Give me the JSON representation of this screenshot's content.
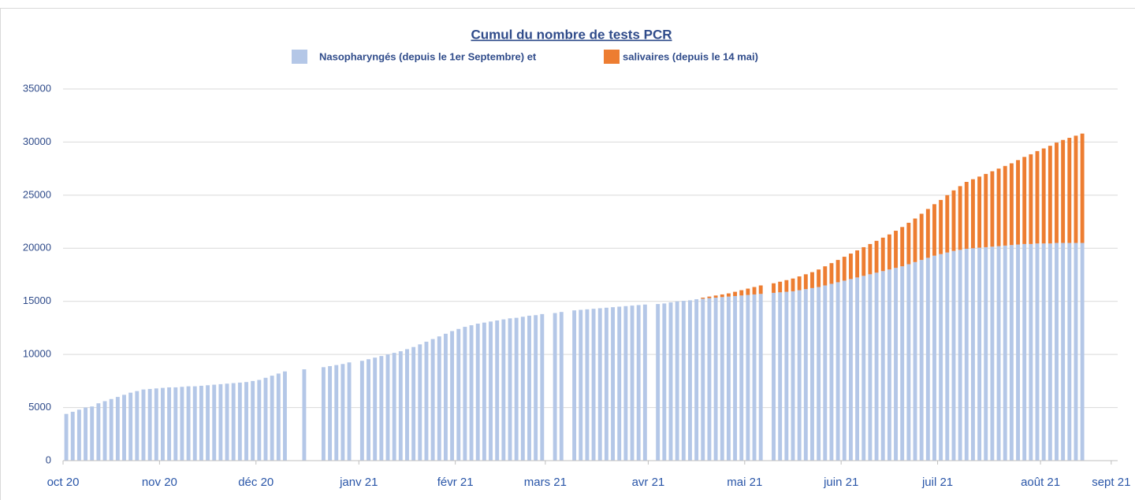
{
  "chart_data": {
    "type": "stacked_bar",
    "title": "Cumul du nombre de tests PCR",
    "categories": [
      "oct 20",
      null,
      null,
      null,
      null,
      null,
      null,
      null,
      null,
      null,
      null,
      null,
      null,
      null,
      null,
      "nov 20",
      null,
      null,
      null,
      null,
      null,
      null,
      null,
      null,
      null,
      null,
      null,
      null,
      null,
      null,
      "déc 20",
      null,
      null,
      null,
      null,
      null,
      null,
      null,
      null,
      null,
      null,
      null,
      null,
      null,
      null,
      null,
      "janv 21",
      null,
      null,
      null,
      null,
      null,
      null,
      null,
      null,
      null,
      null,
      null,
      null,
      null,
      null,
      "févr 21",
      null,
      null,
      null,
      null,
      null,
      null,
      null,
      null,
      null,
      null,
      null,
      null,
      null,
      "mars 21",
      null,
      null,
      null,
      null,
      null,
      null,
      null,
      null,
      null,
      null,
      null,
      null,
      null,
      null,
      null,
      "avr 21",
      null,
      null,
      null,
      null,
      null,
      null,
      null,
      null,
      null,
      null,
      null,
      null,
      null,
      null,
      "mai 21",
      null,
      null,
      null,
      null,
      null,
      null,
      null,
      null,
      null,
      null,
      null,
      null,
      null,
      null,
      "juin 21",
      null,
      null,
      null,
      null,
      null,
      null,
      null,
      null,
      null,
      null,
      null,
      null,
      null,
      null,
      "juil 21",
      null,
      null,
      null,
      null,
      null,
      null,
      null,
      null,
      null,
      null,
      null,
      null,
      null,
      null,
      null,
      "août 21",
      null,
      null,
      null,
      null,
      null,
      null,
      null,
      null,
      null,
      null,
      "sept 21"
    ],
    "series": [
      {
        "name": "Nasopharyngés (depuis le 1er Septembre) et",
        "color": "#b4c7e7",
        "values": [
          4400,
          4600,
          4800,
          5000,
          5100,
          5400,
          5600,
          5800,
          6000,
          6200,
          6400,
          6550,
          6700,
          6750,
          6800,
          6850,
          6900,
          6900,
          6950,
          7000,
          7000,
          7050,
          7100,
          7150,
          7200,
          7250,
          7300,
          7350,
          7400,
          7500,
          7600,
          7800,
          8000,
          8200,
          8400,
          null,
          null,
          8600,
          null,
          null,
          8800,
          8900,
          9000,
          9100,
          9250,
          null,
          9400,
          9550,
          9700,
          9850,
          10000,
          10150,
          10300,
          10500,
          10700,
          10950,
          11200,
          11450,
          11700,
          11950,
          12200,
          12400,
          12600,
          12750,
          12900,
          13000,
          13100,
          13200,
          13300,
          13400,
          13450,
          13550,
          13650,
          13700,
          13800,
          null,
          13900,
          14000,
          null,
          14150,
          14200,
          14250,
          14300,
          14350,
          14400,
          14450,
          14500,
          14550,
          14600,
          14650,
          14700,
          null,
          14750,
          14800,
          14900,
          15000,
          15050,
          15100,
          15200,
          15250,
          15300,
          15350,
          15400,
          15450,
          15500,
          15550,
          15600,
          15650,
          15700,
          null,
          15800,
          15850,
          15900,
          15950,
          16050,
          16150,
          16250,
          16350,
          16500,
          16650,
          16800,
          16950,
          17100,
          17250,
          17400,
          17550,
          17700,
          17850,
          18000,
          18150,
          18300,
          18500,
          18700,
          18900,
          19100,
          19300,
          19450,
          19600,
          19750,
          19850,
          19950,
          20000,
          20050,
          20100,
          20150,
          20200,
          20250,
          20300,
          20350,
          20400,
          20400,
          20450,
          20450,
          20450,
          20500,
          20500,
          20500,
          20500,
          20500,
          null,
          null,
          null,
          null,
          null
        ]
      },
      {
        "name": "salivaires (depuis le 14 mai)",
        "color": "#ed7d31",
        "values": [
          null,
          null,
          null,
          null,
          null,
          null,
          null,
          null,
          null,
          null,
          null,
          null,
          null,
          null,
          null,
          null,
          null,
          null,
          null,
          null,
          null,
          null,
          null,
          null,
          null,
          null,
          null,
          null,
          null,
          null,
          null,
          null,
          null,
          null,
          null,
          null,
          null,
          null,
          null,
          null,
          null,
          null,
          null,
          null,
          null,
          null,
          null,
          null,
          null,
          null,
          null,
          null,
          null,
          null,
          null,
          null,
          null,
          null,
          null,
          null,
          null,
          null,
          null,
          null,
          null,
          null,
          null,
          null,
          null,
          null,
          null,
          null,
          null,
          null,
          null,
          null,
          null,
          null,
          null,
          null,
          null,
          null,
          null,
          null,
          null,
          null,
          null,
          null,
          null,
          null,
          null,
          null,
          null,
          null,
          null,
          null,
          null,
          null,
          null,
          100,
          150,
          200,
          250,
          300,
          400,
          500,
          600,
          700,
          800,
          null,
          900,
          1000,
          1100,
          1200,
          1300,
          1400,
          1500,
          1650,
          1800,
          1950,
          2100,
          2250,
          2400,
          2550,
          2700,
          2850,
          3000,
          3150,
          3300,
          3500,
          3700,
          3900,
          4100,
          4350,
          4600,
          4850,
          5100,
          5400,
          5700,
          6000,
          6300,
          6500,
          6700,
          6900,
          7100,
          7300,
          7500,
          7700,
          7950,
          8200,
          8450,
          8700,
          8950,
          9200,
          9450,
          9700,
          9900,
          10100,
          10300,
          null,
          null,
          null,
          null,
          null
        ]
      }
    ],
    "ylim": [
      0,
      35000
    ],
    "yticks": [
      0,
      5000,
      10000,
      15000,
      20000,
      25000,
      30000,
      35000
    ],
    "grid": true
  }
}
